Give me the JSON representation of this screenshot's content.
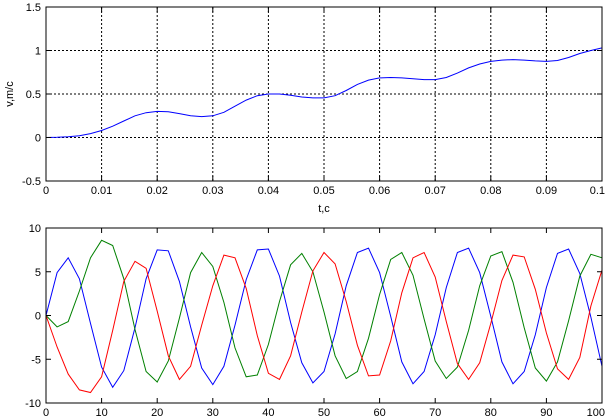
{
  "chart_data": [
    {
      "type": "line",
      "title": "",
      "xlabel": "t,c",
      "ylabel": "v,m/c",
      "xlim": [
        0,
        0.1
      ],
      "ylim": [
        -0.5,
        1.5
      ],
      "xticks": [
        0,
        0.01,
        0.02,
        0.03,
        0.04,
        0.05,
        0.06,
        0.07,
        0.08,
        0.09,
        0.1
      ],
      "xtick_labels": [
        "0",
        "0.01",
        "0.02",
        "0.03",
        "0.04",
        "0.05",
        "0.06",
        "0.07",
        "0.08",
        "0.09",
        "0.1"
      ],
      "yticks": [
        -0.5,
        0,
        0.5,
        1,
        1.5
      ],
      "ytick_labels": [
        "-0.5",
        "0",
        "0.5",
        "1",
        "1.5"
      ],
      "grid": true,
      "legend": "none",
      "series": [
        {
          "color": "#0000ff",
          "x": [
            0,
            0.002,
            0.004,
            0.006,
            0.008,
            0.01,
            0.012,
            0.014,
            0.016,
            0.018,
            0.02,
            0.022,
            0.024,
            0.026,
            0.028,
            0.03,
            0.032,
            0.034,
            0.036,
            0.038,
            0.04,
            0.042,
            0.044,
            0.046,
            0.048,
            0.05,
            0.052,
            0.054,
            0.056,
            0.058,
            0.06,
            0.062,
            0.064,
            0.066,
            0.068,
            0.07,
            0.072,
            0.074,
            0.076,
            0.078,
            0.08,
            0.082,
            0.084,
            0.086,
            0.088,
            0.09,
            0.092,
            0.094,
            0.096,
            0.098,
            0.1
          ],
          "y": [
            0,
            0.002,
            0.008,
            0.02,
            0.045,
            0.08,
            0.13,
            0.19,
            0.25,
            0.285,
            0.3,
            0.295,
            0.275,
            0.25,
            0.24,
            0.25,
            0.29,
            0.36,
            0.43,
            0.48,
            0.5,
            0.5,
            0.485,
            0.465,
            0.455,
            0.455,
            0.48,
            0.54,
            0.61,
            0.66,
            0.685,
            0.69,
            0.685,
            0.675,
            0.665,
            0.665,
            0.69,
            0.74,
            0.8,
            0.845,
            0.875,
            0.89,
            0.895,
            0.89,
            0.88,
            0.875,
            0.885,
            0.92,
            0.965,
            1.0,
            1.03
          ]
        }
      ]
    },
    {
      "type": "line",
      "title": "",
      "xlabel": "",
      "ylabel": "",
      "xlim": [
        0,
        100
      ],
      "ylim": [
        -10,
        10
      ],
      "xticks": [
        0,
        10,
        20,
        30,
        40,
        50,
        60,
        70,
        80,
        90,
        100
      ],
      "xtick_labels": [
        "0",
        "10",
        "20",
        "30",
        "40",
        "50",
        "60",
        "70",
        "80",
        "90",
        "100"
      ],
      "yticks": [
        -10,
        -5,
        0,
        5,
        10
      ],
      "ytick_labels": [
        "-10",
        "-5",
        "0",
        "5",
        "10"
      ],
      "grid": false,
      "legend": "none",
      "series": [
        {
          "color": "#0000ff",
          "x": [
            0,
            2,
            4,
            6,
            8,
            10,
            12,
            14,
            16,
            18,
            20,
            22,
            24,
            26,
            28,
            30,
            32,
            34,
            36,
            38,
            40,
            42,
            44,
            46,
            48,
            50,
            52,
            54,
            56,
            58,
            60,
            62,
            64,
            66,
            68,
            70,
            72,
            74,
            76,
            78,
            80,
            82,
            84,
            86,
            88,
            90,
            92,
            94,
            96,
            98,
            100
          ],
          "y": [
            0,
            4.9,
            6.6,
            4.2,
            -0.9,
            -5.9,
            -8.2,
            -6.3,
            -1.4,
            4.2,
            7.5,
            7.4,
            3.9,
            -1.3,
            -6,
            -7.9,
            -5.8,
            -1.1,
            4.1,
            7.5,
            7.6,
            4.5,
            -0.8,
            -5.4,
            -7.7,
            -6.4,
            -2.1,
            3.4,
            7.2,
            7.7,
            4.9,
            -0.1,
            -5.3,
            -7.8,
            -6.4,
            -2.2,
            3.2,
            7.2,
            7.7,
            4.9,
            -0.1,
            -5.3,
            -7.8,
            -6.4,
            -2.2,
            3.2,
            7.1,
            7.6,
            4.8,
            -0.2,
            -5.8
          ]
        },
        {
          "color": "#008000",
          "x": [
            0,
            2,
            4,
            6,
            8,
            10,
            12,
            14,
            16,
            18,
            20,
            22,
            24,
            26,
            28,
            30,
            32,
            34,
            36,
            38,
            40,
            42,
            44,
            46,
            48,
            50,
            52,
            54,
            56,
            58,
            60,
            62,
            64,
            66,
            68,
            70,
            72,
            74,
            76,
            78,
            80,
            82,
            84,
            86,
            88,
            90,
            92,
            94,
            96,
            98,
            100
          ],
          "y": [
            0,
            -1.3,
            -0.7,
            2.8,
            6.6,
            8.6,
            8,
            4.2,
            -1.6,
            -6.4,
            -7.6,
            -5.2,
            -0.3,
            4.9,
            7.2,
            5.6,
            1.5,
            -3.7,
            -7,
            -6.8,
            -3.3,
            1.6,
            5.8,
            7.1,
            5,
            0.4,
            -4.6,
            -7.2,
            -6.4,
            -2.6,
            2.4,
            6.4,
            7.2,
            4.6,
            -0.4,
            -5.2,
            -7.2,
            -5.9,
            -1.7,
            3.4,
            6.8,
            7.3,
            3.8,
            -1.4,
            -6,
            -7.5,
            -5.3,
            -0.6,
            4.5,
            7,
            6.6
          ]
        },
        {
          "color": "#ff0000",
          "x": [
            0,
            2,
            4,
            6,
            8,
            10,
            12,
            14,
            16,
            18,
            20,
            22,
            24,
            26,
            28,
            30,
            32,
            34,
            36,
            38,
            40,
            42,
            44,
            46,
            48,
            50,
            52,
            54,
            56,
            58,
            60,
            62,
            64,
            66,
            68,
            70,
            72,
            74,
            76,
            78,
            80,
            82,
            84,
            86,
            88,
            90,
            92,
            94,
            96,
            98,
            100
          ],
          "y": [
            0,
            -3.6,
            -6.7,
            -8.5,
            -8.8,
            -7,
            -1.7,
            3.9,
            6.2,
            5.4,
            0.5,
            -4.6,
            -7.3,
            -5.8,
            -1.1,
            3.4,
            6.9,
            6.6,
            3.1,
            -2.3,
            -6.6,
            -7.3,
            -4.6,
            0.4,
            5.1,
            7.2,
            5.9,
            1.6,
            -3.4,
            -6.9,
            -6.8,
            -2.9,
            2.6,
            6.6,
            7.2,
            4.4,
            -0.7,
            -5.5,
            -7.3,
            -5.4,
            -0.9,
            4,
            6.9,
            6.7,
            3,
            -2,
            -6.1,
            -7.3,
            -4.8,
            1.1,
            5.2
          ]
        }
      ]
    }
  ]
}
